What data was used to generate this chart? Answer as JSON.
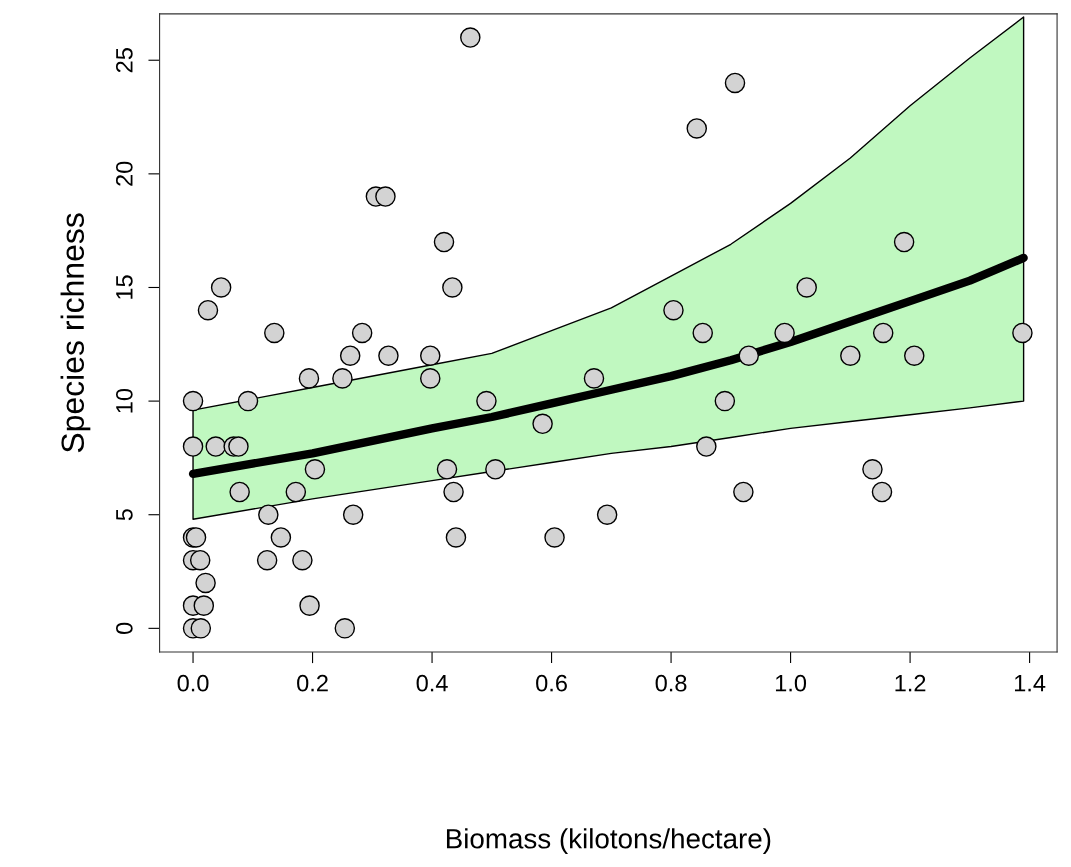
{
  "chart_data": {
    "type": "scatter",
    "xlabel": "Biomass (kilotons/hectare)",
    "ylabel": "Species richness",
    "xlim": [
      -0.056,
      1.446
    ],
    "ylim": [
      -1.04,
      27.04
    ],
    "xticks": [
      {
        "value": 0,
        "label": "0.0"
      },
      {
        "value": 0.2,
        "label": "0.2"
      },
      {
        "value": 0.4,
        "label": "0.4"
      },
      {
        "value": 0.6,
        "label": "0.6"
      },
      {
        "value": 0.8,
        "label": "0.8"
      },
      {
        "value": 1.0,
        "label": "1.0"
      },
      {
        "value": 1.2,
        "label": "1.2"
      },
      {
        "value": 1.4,
        "label": "1.4"
      }
    ],
    "yticks": [
      0,
      5,
      10,
      15,
      20,
      25
    ],
    "grid": false,
    "series": [
      {
        "type": "line",
        "marker": "none",
        "color": "#000000",
        "x": [
          0,
          0.2,
          0.4,
          0.5,
          0.6,
          0.7,
          0.8,
          0.9,
          1.0,
          1.1,
          1.2,
          1.3,
          1.39
        ],
        "values": [
          6.8,
          7.7,
          8.8,
          9.3,
          9.9,
          10.5,
          11.1,
          11.8,
          12.6,
          13.5,
          14.4,
          15.3,
          16.3
        ],
        "lower": [
          4.8,
          5.7,
          6.5,
          6.9,
          7.3,
          7.7,
          8.0,
          8.4,
          8.8,
          9.1,
          9.4,
          9.7,
          10.0
        ],
        "upper": [
          9.6,
          10.6,
          11.6,
          12.1,
          13.1,
          14.1,
          15.5,
          16.9,
          18.7,
          20.7,
          23.0,
          25.1,
          26.9
        ]
      },
      {
        "marker": "circle",
        "color": "#d3d3d3",
        "x": [
          0,
          0,
          0,
          0,
          0,
          0,
          0.005,
          0.012,
          0.013,
          0.018,
          0.021,
          0.025,
          0.038,
          0.047,
          0.068,
          0.076,
          0.078,
          0.092,
          0.124,
          0.126,
          0.136,
          0.147,
          0.172,
          0.183,
          0.194,
          0.195,
          0.204,
          0.25,
          0.254,
          0.263,
          0.268,
          0.283,
          0.306,
          0.322,
          0.327,
          0.397,
          0.397,
          0.42,
          0.425,
          0.434,
          0.436,
          0.44,
          0.464,
          0.491,
          0.506,
          0.585,
          0.605,
          0.671,
          0.693,
          0.804,
          0.843,
          0.853,
          0.859,
          0.89,
          0.907,
          0.921,
          0.93,
          0.99,
          1.027,
          1.1,
          1.137,
          1.153,
          1.155,
          1.19,
          1.207,
          1.388
        ],
        "values": [
          10,
          8,
          3,
          1,
          0,
          4,
          4,
          3,
          0,
          1,
          2,
          14,
          8,
          15,
          8,
          8,
          6,
          10,
          3,
          5,
          13,
          4,
          6,
          3,
          11,
          1,
          7,
          11,
          0,
          12,
          5,
          13,
          19,
          19,
          12,
          12,
          11,
          17,
          7,
          15,
          6,
          4,
          26,
          10,
          7,
          9,
          4,
          11,
          5,
          14,
          22,
          13,
          8,
          10,
          24,
          6,
          12,
          13,
          15,
          12,
          7,
          6,
          13,
          17,
          12,
          13
        ]
      }
    ]
  }
}
